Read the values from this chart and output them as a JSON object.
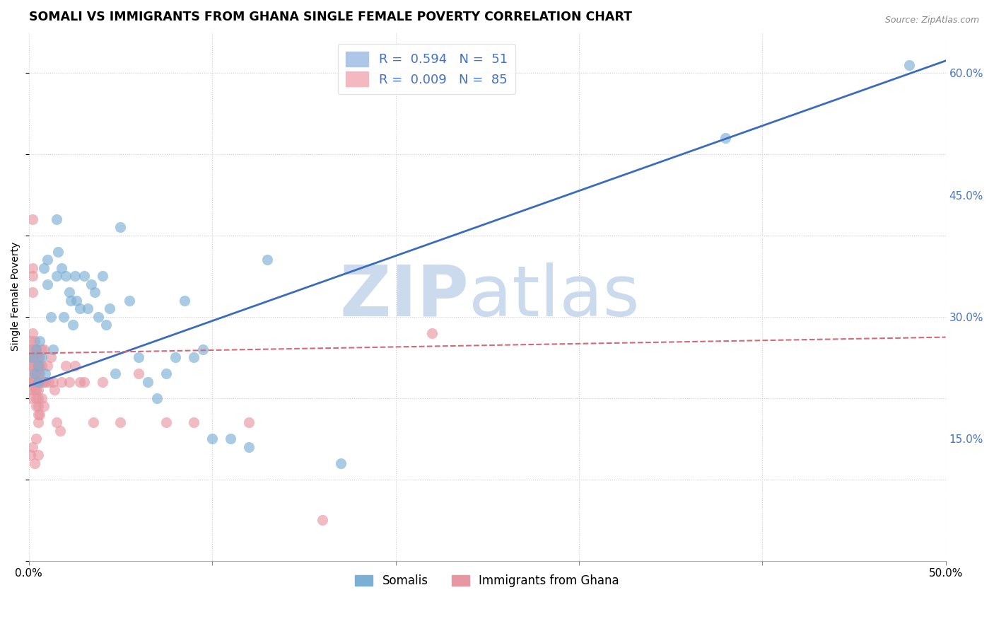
{
  "title": "SOMALI VS IMMIGRANTS FROM GHANA SINGLE FEMALE POVERTY CORRELATION CHART",
  "source": "Source: ZipAtlas.com",
  "ylabel": "Single Female Poverty",
  "xlim": [
    0.0,
    0.5
  ],
  "ylim": [
    0.0,
    0.65
  ],
  "dot_color_somali": "#7bafd4",
  "dot_color_ghana": "#e897a2",
  "line_color_blue": "#3a6bbf",
  "line_color_pink": "#d46878",
  "background_color": "#ffffff",
  "grid_color": "#cccccc",
  "title_fontsize": 12.5,
  "axis_label_fontsize": 10,
  "tick_fontsize": 11,
  "watermark_color": "#ccdaee",
  "watermark_fontsize": 72,
  "blue_line_x": [
    0.0,
    0.5
  ],
  "blue_line_y": [
    0.215,
    0.615
  ],
  "pink_line_x": [
    0.0,
    0.5
  ],
  "pink_line_y": [
    0.255,
    0.275
  ],
  "somalis_x": [
    0.002,
    0.003,
    0.004,
    0.005,
    0.005,
    0.006,
    0.007,
    0.008,
    0.009,
    0.01,
    0.01,
    0.012,
    0.013,
    0.015,
    0.015,
    0.016,
    0.018,
    0.019,
    0.02,
    0.022,
    0.023,
    0.024,
    0.025,
    0.026,
    0.028,
    0.03,
    0.032,
    0.034,
    0.036,
    0.038,
    0.04,
    0.042,
    0.044,
    0.047,
    0.05,
    0.055,
    0.06,
    0.065,
    0.07,
    0.075,
    0.08,
    0.085,
    0.09,
    0.095,
    0.1,
    0.11,
    0.12,
    0.13,
    0.17,
    0.38,
    0.48
  ],
  "somalis_y": [
    0.25,
    0.23,
    0.26,
    0.24,
    0.22,
    0.27,
    0.25,
    0.36,
    0.23,
    0.37,
    0.34,
    0.3,
    0.26,
    0.42,
    0.35,
    0.38,
    0.36,
    0.3,
    0.35,
    0.33,
    0.32,
    0.29,
    0.35,
    0.32,
    0.31,
    0.35,
    0.31,
    0.34,
    0.33,
    0.3,
    0.35,
    0.29,
    0.31,
    0.23,
    0.41,
    0.32,
    0.25,
    0.22,
    0.2,
    0.23,
    0.25,
    0.32,
    0.25,
    0.26,
    0.15,
    0.15,
    0.14,
    0.37,
    0.12,
    0.52,
    0.61
  ],
  "ghana_x": [
    0.001,
    0.001,
    0.001,
    0.001,
    0.001,
    0.001,
    0.001,
    0.001,
    0.001,
    0.001,
    0.002,
    0.002,
    0.002,
    0.002,
    0.002,
    0.002,
    0.002,
    0.002,
    0.002,
    0.002,
    0.003,
    0.003,
    0.003,
    0.003,
    0.003,
    0.003,
    0.003,
    0.003,
    0.003,
    0.003,
    0.004,
    0.004,
    0.004,
    0.004,
    0.004,
    0.004,
    0.004,
    0.004,
    0.004,
    0.004,
    0.005,
    0.005,
    0.005,
    0.005,
    0.005,
    0.005,
    0.005,
    0.005,
    0.005,
    0.005,
    0.006,
    0.006,
    0.006,
    0.006,
    0.006,
    0.007,
    0.007,
    0.007,
    0.007,
    0.008,
    0.008,
    0.008,
    0.009,
    0.01,
    0.011,
    0.012,
    0.013,
    0.014,
    0.015,
    0.017,
    0.018,
    0.02,
    0.022,
    0.025,
    0.028,
    0.03,
    0.035,
    0.04,
    0.05,
    0.06,
    0.075,
    0.09,
    0.12,
    0.16,
    0.22
  ],
  "ghana_y": [
    0.22,
    0.23,
    0.24,
    0.25,
    0.26,
    0.27,
    0.22,
    0.21,
    0.2,
    0.13,
    0.42,
    0.36,
    0.35,
    0.33,
    0.28,
    0.26,
    0.25,
    0.24,
    0.22,
    0.14,
    0.27,
    0.26,
    0.25,
    0.24,
    0.23,
    0.23,
    0.22,
    0.22,
    0.21,
    0.12,
    0.26,
    0.24,
    0.23,
    0.23,
    0.22,
    0.22,
    0.21,
    0.2,
    0.19,
    0.15,
    0.25,
    0.24,
    0.23,
    0.22,
    0.21,
    0.2,
    0.19,
    0.18,
    0.17,
    0.13,
    0.25,
    0.24,
    0.23,
    0.22,
    0.18,
    0.26,
    0.24,
    0.22,
    0.2,
    0.26,
    0.22,
    0.19,
    0.22,
    0.24,
    0.22,
    0.25,
    0.22,
    0.21,
    0.17,
    0.16,
    0.22,
    0.24,
    0.22,
    0.24,
    0.22,
    0.22,
    0.17,
    0.22,
    0.17,
    0.23,
    0.17,
    0.17,
    0.17,
    0.05,
    0.28
  ]
}
